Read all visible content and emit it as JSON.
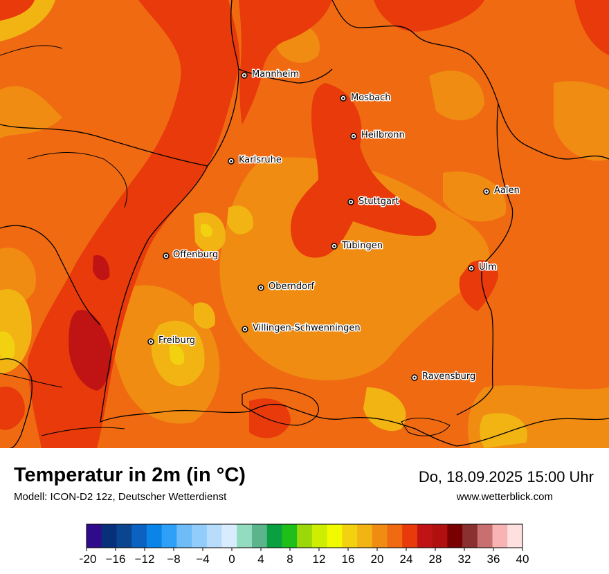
{
  "title": "Temperatur in 2m (in °C)",
  "model": "Modell: ICON-D2 12z, Deutscher Wetterdienst",
  "datetime": "Do, 18.09.2025 15:00 Uhr",
  "website": "www.wetterblick.com",
  "cities": [
    {
      "name": "Mannheim"
    },
    {
      "name": "Mosbach"
    },
    {
      "name": "Heilbronn"
    },
    {
      "name": "Karlsruhe"
    },
    {
      "name": "Aalen"
    },
    {
      "name": "Stuttgart"
    },
    {
      "name": "Tübingen"
    },
    {
      "name": "Offenburg"
    },
    {
      "name": "Ulm"
    },
    {
      "name": "Oberndorf"
    },
    {
      "name": "Villingen-Schwenningen"
    },
    {
      "name": "Freiburg"
    },
    {
      "name": "Ravensburg"
    }
  ],
  "legend": {
    "colors": [
      "#2f0a8a",
      "#08307a",
      "#0a4590",
      "#0b62c0",
      "#0a84e8",
      "#2fa0f8",
      "#6dbcf8",
      "#92ccfa",
      "#b7ddfb",
      "#d8ecfd",
      "#94dcc0",
      "#5cb48c",
      "#08a040",
      "#1fbf1a",
      "#9ad80a",
      "#cdee00",
      "#f2fa00",
      "#f2d210",
      "#f2b412",
      "#f08c12",
      "#f06a12",
      "#e83a0a",
      "#c01414",
      "#b01010",
      "#780000",
      "#8a3030",
      "#c87070",
      "#f8b4b4",
      "#ffe0e0"
    ],
    "tick_labels": [
      "−20",
      "−16",
      "−12",
      "−8",
      "−4",
      "0",
      "4",
      "8",
      "12",
      "16",
      "20",
      "24",
      "28",
      "32",
      "36",
      "40"
    ]
  }
}
